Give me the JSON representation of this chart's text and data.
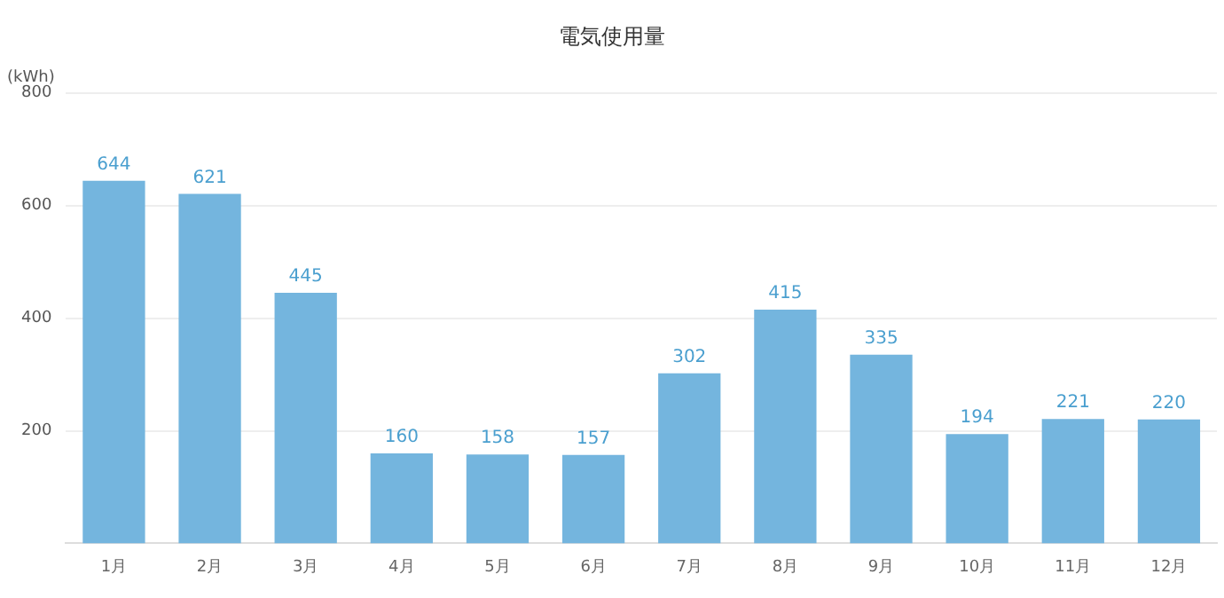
{
  "chart_data": {
    "type": "bar",
    "title": "電気使用量",
    "ylabel": "(kWh)",
    "categories": [
      "1月",
      "2月",
      "3月",
      "4月",
      "5月",
      "6月",
      "7月",
      "8月",
      "9月",
      "10月",
      "11月",
      "12月"
    ],
    "values": [
      644,
      621,
      445,
      160,
      158,
      157,
      302,
      415,
      335,
      194,
      221,
      220
    ],
    "color": "#74b5de",
    "ylim": [
      0,
      800
    ],
    "yticks": [
      200,
      400,
      600,
      800
    ],
    "grid": "y",
    "data_labels": true
  }
}
